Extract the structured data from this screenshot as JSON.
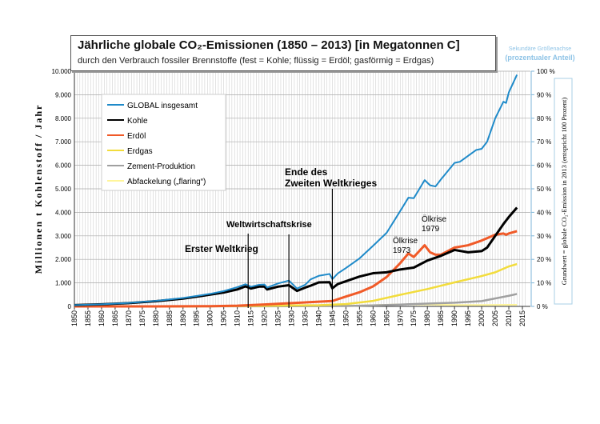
{
  "chart_data": {
    "type": "line",
    "title": "Jährliche globale CO₂-Emissionen (1850 – 2013) [in Megatonnen C]",
    "subtitle": "durch den Verbrauch fossiler Brennstoffe (fest = Kohle; flüssig = Erdöl; gasförmig = Erdgas)",
    "ylabel": "Millionen t Kohlenstoff / Jahr",
    "y2label": "Grundwert = globale CO₂-Emission in 2013 (entspricht 100 Prozent)",
    "secondary_axis_note": "Sekundäre Größenachse",
    "secondary_axis_note2": "(prozentualer Anteil)",
    "xlim": [
      1850,
      2015
    ],
    "ylim": [
      0,
      10000
    ],
    "yticks": [
      "0",
      "1.000",
      "2.000",
      "3.000",
      "4.000",
      "5.000",
      "6.000",
      "7.000",
      "8.000",
      "9.000",
      "10.000"
    ],
    "y2ticks": [
      "0 %",
      "10 %",
      "20 %",
      "30 %",
      "40 %",
      "50 %",
      "60 %",
      "70 %",
      "80 %",
      "90 %",
      "100 %"
    ],
    "xticks": [
      "1850",
      "1855",
      "1860",
      "1865",
      "1870",
      "1875",
      "1880",
      "1885",
      "1890",
      "1895",
      "1900",
      "1905",
      "1910",
      "1915",
      "1920",
      "1925",
      "1930",
      "1935",
      "1940",
      "1945",
      "1950",
      "1955",
      "1960",
      "1965",
      "1970",
      "1975",
      "1980",
      "1985",
      "1990",
      "1995",
      "2000",
      "2005",
      "2010",
      "2015"
    ],
    "grid": true,
    "legend": "top-left",
    "series": [
      {
        "name": "GLOBAL insgesamt",
        "color": "#1f8ac9",
        "points": [
          [
            1850,
            54
          ],
          [
            1860,
            91
          ],
          [
            1870,
            147
          ],
          [
            1880,
            236
          ],
          [
            1890,
            356
          ],
          [
            1900,
            534
          ],
          [
            1905,
            650
          ],
          [
            1910,
            819
          ],
          [
            1913,
            943
          ],
          [
            1915,
            836
          ],
          [
            1918,
            920
          ],
          [
            1920,
            932
          ],
          [
            1921,
            800
          ],
          [
            1925,
            975
          ],
          [
            1929,
            1100
          ],
          [
            1932,
            760
          ],
          [
            1935,
            920
          ],
          [
            1937,
            1150
          ],
          [
            1940,
            1300
          ],
          [
            1944,
            1380
          ],
          [
            1945,
            1160
          ],
          [
            1947,
            1400
          ],
          [
            1950,
            1630
          ],
          [
            1955,
            2040
          ],
          [
            1960,
            2577
          ],
          [
            1965,
            3130
          ],
          [
            1970,
            4053
          ],
          [
            1973,
            4620
          ],
          [
            1975,
            4600
          ],
          [
            1979,
            5370
          ],
          [
            1981,
            5150
          ],
          [
            1983,
            5100
          ],
          [
            1985,
            5400
          ],
          [
            1990,
            6100
          ],
          [
            1992,
            6150
          ],
          [
            1995,
            6400
          ],
          [
            1998,
            6650
          ],
          [
            2000,
            6700
          ],
          [
            2002,
            7000
          ],
          [
            2005,
            8000
          ],
          [
            2008,
            8700
          ],
          [
            2009,
            8650
          ],
          [
            2010,
            9100
          ],
          [
            2013,
            9850
          ]
        ]
      },
      {
        "name": "Kohle",
        "color": "#000000",
        "points": [
          [
            1850,
            54
          ],
          [
            1860,
            90
          ],
          [
            1870,
            140
          ],
          [
            1880,
            220
          ],
          [
            1890,
            330
          ],
          [
            1900,
            500
          ],
          [
            1905,
            590
          ],
          [
            1910,
            720
          ],
          [
            1913,
            850
          ],
          [
            1915,
            760
          ],
          [
            1918,
            840
          ],
          [
            1920,
            840
          ],
          [
            1921,
            720
          ],
          [
            1925,
            840
          ],
          [
            1929,
            900
          ],
          [
            1932,
            660
          ],
          [
            1935,
            800
          ],
          [
            1937,
            880
          ],
          [
            1940,
            1020
          ],
          [
            1944,
            1030
          ],
          [
            1945,
            770
          ],
          [
            1947,
            950
          ],
          [
            1950,
            1070
          ],
          [
            1955,
            1270
          ],
          [
            1960,
            1410
          ],
          [
            1965,
            1450
          ],
          [
            1970,
            1570
          ],
          [
            1975,
            1650
          ],
          [
            1980,
            1950
          ],
          [
            1985,
            2150
          ],
          [
            1990,
            2400
          ],
          [
            1995,
            2300
          ],
          [
            2000,
            2350
          ],
          [
            2002,
            2500
          ],
          [
            2005,
            3000
          ],
          [
            2008,
            3500
          ],
          [
            2010,
            3800
          ],
          [
            2013,
            4200
          ]
        ]
      },
      {
        "name": "Erdöl",
        "color": "#f05a28",
        "points": [
          [
            1850,
            0
          ],
          [
            1880,
            2
          ],
          [
            1900,
            10
          ],
          [
            1910,
            30
          ],
          [
            1920,
            80
          ],
          [
            1930,
            140
          ],
          [
            1940,
            200
          ],
          [
            1945,
            230
          ],
          [
            1950,
            420
          ],
          [
            1955,
            600
          ],
          [
            1960,
            850
          ],
          [
            1965,
            1250
          ],
          [
            1970,
            1840
          ],
          [
            1973,
            2250
          ],
          [
            1975,
            2100
          ],
          [
            1979,
            2600
          ],
          [
            1981,
            2300
          ],
          [
            1983,
            2200
          ],
          [
            1985,
            2200
          ],
          [
            1990,
            2500
          ],
          [
            1995,
            2600
          ],
          [
            2000,
            2800
          ],
          [
            2005,
            3050
          ],
          [
            2008,
            3100
          ],
          [
            2009,
            3050
          ],
          [
            2010,
            3100
          ],
          [
            2013,
            3200
          ]
        ]
      },
      {
        "name": "Erdgas",
        "color": "#f2dc3c",
        "points": [
          [
            1850,
            0
          ],
          [
            1890,
            2
          ],
          [
            1900,
            3
          ],
          [
            1930,
            40
          ],
          [
            1940,
            50
          ],
          [
            1950,
            97
          ],
          [
            1960,
            235
          ],
          [
            1970,
            493
          ],
          [
            1980,
            738
          ],
          [
            1990,
            1020
          ],
          [
            2000,
            1290
          ],
          [
            2005,
            1450
          ],
          [
            2010,
            1700
          ],
          [
            2013,
            1800
          ]
        ]
      },
      {
        "name": "Zement-Produktion",
        "color": "#a0a0a0",
        "points": [
          [
            1850,
            0
          ],
          [
            1920,
            5
          ],
          [
            1930,
            10
          ],
          [
            1950,
            18
          ],
          [
            1960,
            43
          ],
          [
            1970,
            78
          ],
          [
            1980,
            120
          ],
          [
            1990,
            157
          ],
          [
            2000,
            226
          ],
          [
            2010,
            450
          ],
          [
            2013,
            530
          ]
        ]
      },
      {
        "name": "Abfackelung („flaring“)",
        "color": "#fff59a",
        "points": [
          [
            1850,
            0
          ],
          [
            1940,
            5
          ],
          [
            1950,
            23
          ],
          [
            1970,
            87
          ],
          [
            1980,
            80
          ],
          [
            1990,
            60
          ],
          [
            2000,
            60
          ],
          [
            2013,
            70
          ]
        ]
      }
    ],
    "annotations": [
      {
        "text": "Erster Weltkrieg",
        "year": 1914
      },
      {
        "text": "Weltwirtschaftskrise",
        "year": 1929
      },
      {
        "text": "Ende des",
        "text2": "Zweiten Weltkrieges",
        "year": 1945
      },
      {
        "text": "Ölkrise",
        "text2": "1973",
        "year": 1973
      },
      {
        "text": "Ölkrise",
        "text2": "1979",
        "year": 1979
      }
    ]
  }
}
